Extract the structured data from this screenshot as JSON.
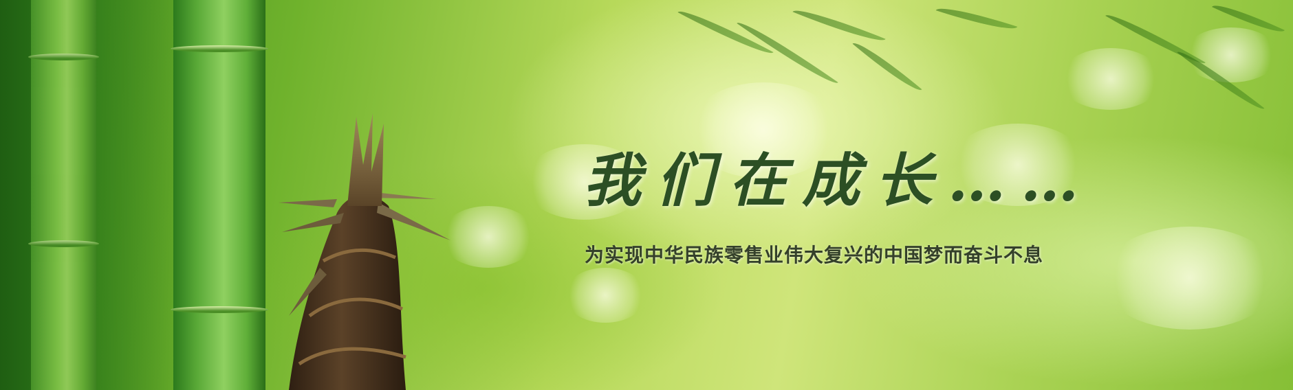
{
  "banner": {
    "title": "我们在成长……",
    "subtitle": "为实现中华民族零售业伟大复兴的中国梦而奋斗不息"
  },
  "colors": {
    "bamboo_green": "#58a836",
    "background_light": "#cfe57a",
    "background_dark": "#3f8a1e",
    "title_text": "#2c4f24",
    "subtitle_text": "#34402a",
    "shoot_brown": "#4a3422"
  }
}
